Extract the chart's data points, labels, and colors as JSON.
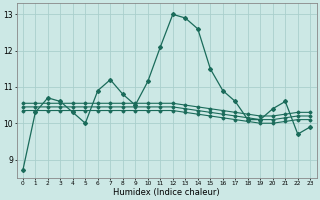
{
  "xlabel": "Humidex (Indice chaleur)",
  "background_color": "#cce8e5",
  "grid_color": "#aacfcc",
  "line_color": "#1a6b5a",
  "xlim_min": -0.5,
  "xlim_max": 23.5,
  "ylim": [
    8.5,
    13.3
  ],
  "yticks": [
    9,
    10,
    11,
    12,
    13
  ],
  "xticks": [
    0,
    1,
    2,
    3,
    4,
    5,
    6,
    7,
    8,
    9,
    10,
    11,
    12,
    13,
    14,
    15,
    16,
    17,
    18,
    19,
    20,
    21,
    22,
    23
  ],
  "main_series": [
    8.7,
    10.3,
    10.7,
    10.6,
    10.3,
    10.0,
    10.9,
    11.2,
    10.8,
    10.5,
    11.15,
    12.1,
    13.0,
    12.9,
    12.6,
    11.5,
    10.9,
    10.6,
    10.1,
    10.1,
    10.4,
    10.6,
    9.7,
    9.9
  ],
  "flat_series": [
    [
      10.35,
      10.35,
      10.35,
      10.35,
      10.35,
      10.35,
      10.35,
      10.35,
      10.35,
      10.35,
      10.35,
      10.35,
      10.35,
      10.3,
      10.25,
      10.2,
      10.15,
      10.1,
      10.05,
      10.0,
      10.0,
      10.05,
      10.1,
      10.1
    ],
    [
      10.45,
      10.45,
      10.45,
      10.45,
      10.45,
      10.45,
      10.45,
      10.45,
      10.45,
      10.45,
      10.45,
      10.45,
      10.45,
      10.4,
      10.35,
      10.3,
      10.25,
      10.2,
      10.15,
      10.1,
      10.1,
      10.15,
      10.2,
      10.2
    ],
    [
      10.55,
      10.55,
      10.55,
      10.55,
      10.55,
      10.55,
      10.55,
      10.55,
      10.55,
      10.55,
      10.55,
      10.55,
      10.55,
      10.5,
      10.45,
      10.4,
      10.35,
      10.3,
      10.25,
      10.2,
      10.2,
      10.25,
      10.3,
      10.3
    ]
  ]
}
